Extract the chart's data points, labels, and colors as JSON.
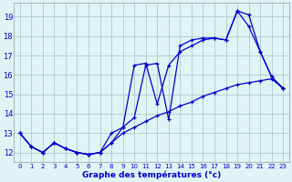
{
  "title": "Graphe des températures (°c)",
  "background_color": "#dff4f4",
  "grid_color": "#aed4d4",
  "line_color": "#0000cc",
  "xlim": [
    -0.5,
    23.5
  ],
  "ylim": [
    11.5,
    19.7
  ],
  "xticks": [
    0,
    1,
    2,
    3,
    4,
    5,
    6,
    7,
    8,
    9,
    10,
    11,
    12,
    13,
    14,
    15,
    16,
    17,
    18,
    19,
    20,
    21,
    22,
    23
  ],
  "yticks": [
    12,
    13,
    14,
    15,
    16,
    17,
    18,
    19
  ],
  "series1_x": [
    0,
    1,
    2,
    3,
    4,
    5,
    6,
    7,
    8,
    9,
    10,
    11,
    12,
    13,
    14,
    15,
    16,
    17,
    18,
    19,
    20,
    21,
    22,
    23
  ],
  "series1_y": [
    13.0,
    12.3,
    12.0,
    12.5,
    12.2,
    12.0,
    11.9,
    12.0,
    13.0,
    13.3,
    16.5,
    16.6,
    14.5,
    16.5,
    17.2,
    17.5,
    17.8,
    17.9,
    17.8,
    19.3,
    19.1,
    17.2,
    15.9,
    15.3
  ],
  "series2_x": [
    0,
    1,
    2,
    3,
    4,
    5,
    6,
    7,
    8,
    9,
    10,
    11,
    12,
    13,
    14,
    15,
    16,
    17,
    18,
    19,
    20,
    21,
    22,
    23
  ],
  "series2_y": [
    13.0,
    12.3,
    12.0,
    12.5,
    12.2,
    12.0,
    11.9,
    12.0,
    12.5,
    13.3,
    13.8,
    16.5,
    16.6,
    13.7,
    17.5,
    17.8,
    17.9,
    17.9,
    17.8,
    19.3,
    18.5,
    17.2,
    15.9,
    15.3
  ],
  "series3_x": [
    0,
    1,
    2,
    3,
    4,
    5,
    6,
    7,
    8,
    9,
    10,
    11,
    12,
    13,
    14,
    15,
    16,
    17,
    18,
    19,
    20,
    21,
    22,
    23
  ],
  "series3_y": [
    13.0,
    12.3,
    12.0,
    12.5,
    12.2,
    12.0,
    11.9,
    12.0,
    12.5,
    13.0,
    13.3,
    13.6,
    13.9,
    14.1,
    14.4,
    14.6,
    14.9,
    15.1,
    15.3,
    15.5,
    15.6,
    15.7,
    15.8,
    15.3
  ]
}
